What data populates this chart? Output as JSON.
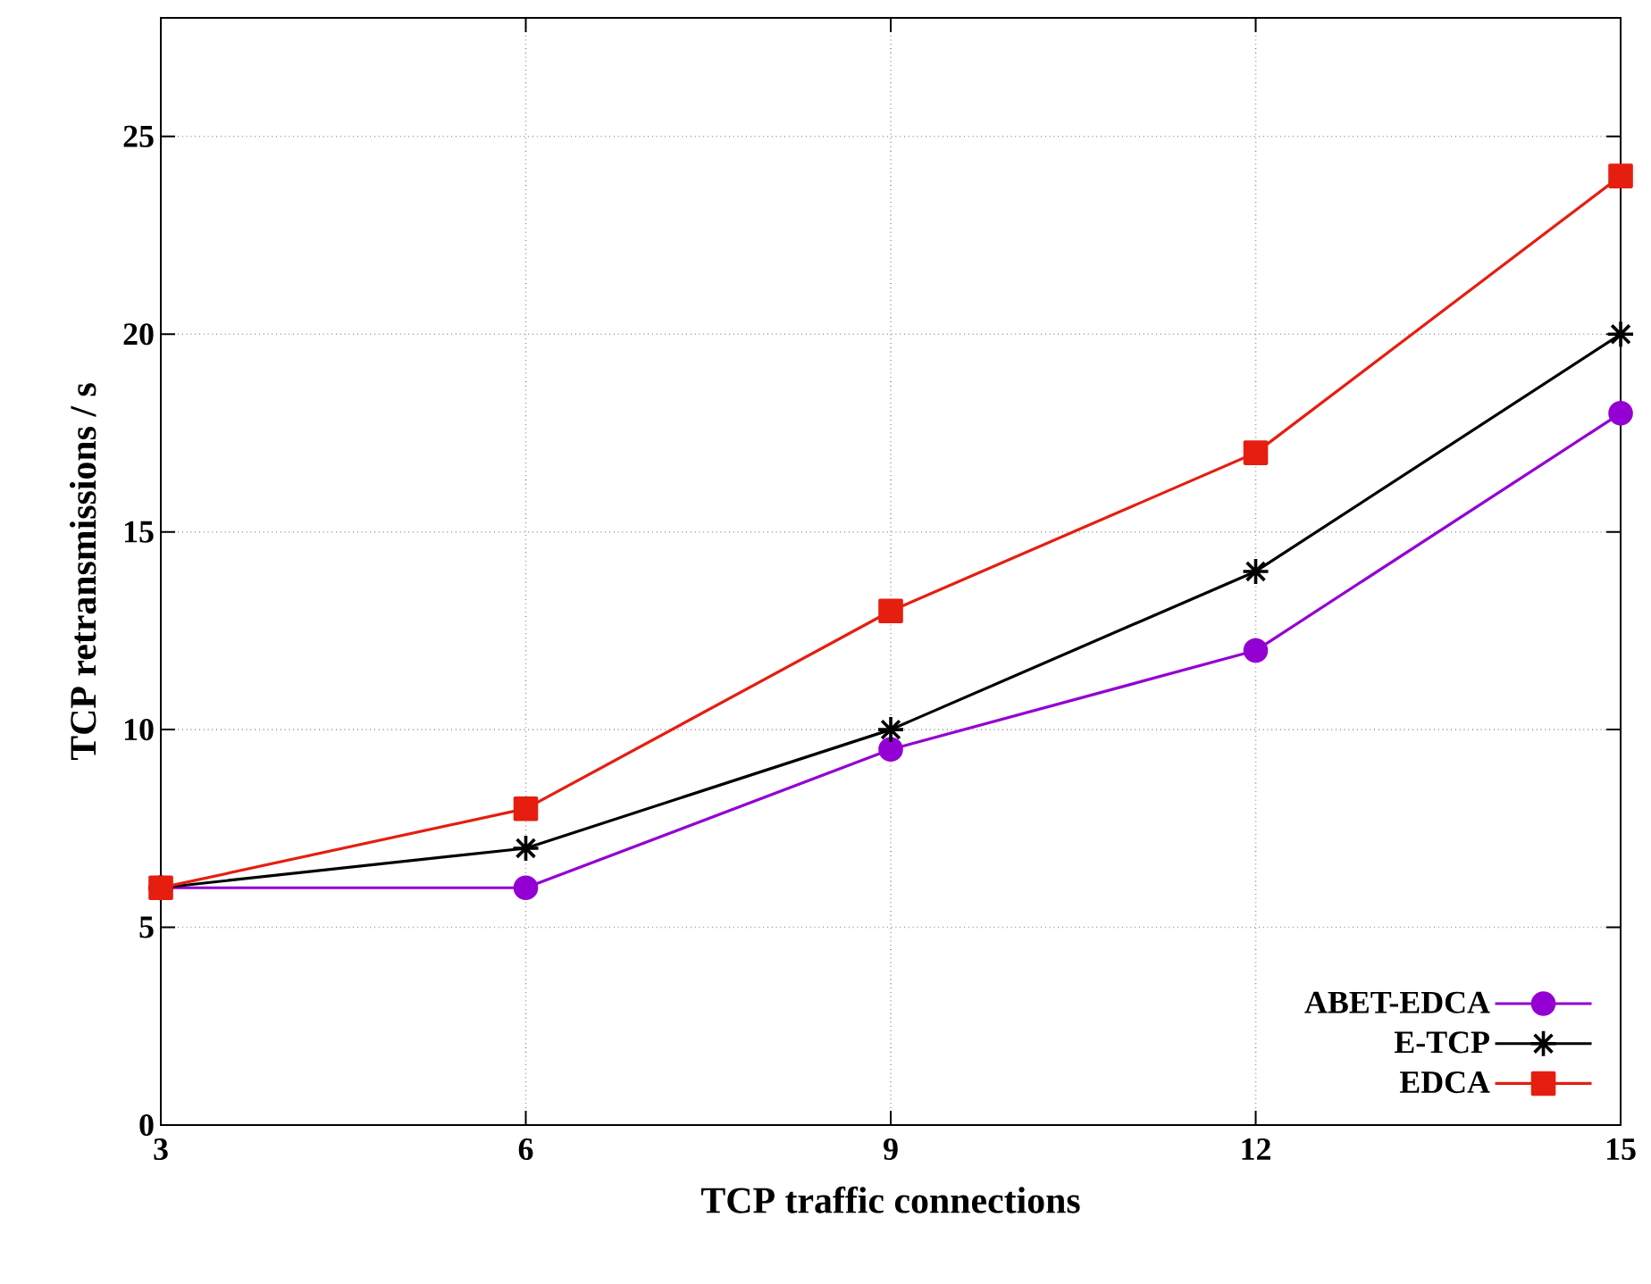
{
  "chart_data": {
    "type": "line",
    "xlabel": "TCP traffic connections",
    "ylabel": "TCP retransmissions / s",
    "x": [
      3,
      6,
      9,
      12,
      15
    ],
    "series": [
      {
        "name": "ABET-EDCA",
        "color": "#9400d3",
        "marker": "circle",
        "values": [
          6,
          6,
          9.5,
          12,
          18
        ]
      },
      {
        "name": "E-TCP",
        "color": "#000000",
        "marker": "cross",
        "values": [
          6,
          7,
          10,
          14,
          20
        ]
      },
      {
        "name": "EDCA",
        "color": "#e51e10",
        "marker": "square",
        "values": [
          6,
          8,
          13,
          17,
          24
        ]
      }
    ],
    "xlim": [
      3,
      15
    ],
    "ylim": [
      0,
      28
    ],
    "xticks": [
      3,
      6,
      9,
      12,
      15
    ],
    "yticks": [
      0,
      5,
      10,
      15,
      20,
      25
    ],
    "grid": true,
    "legend": "bottom right",
    "line_style": "solid"
  }
}
